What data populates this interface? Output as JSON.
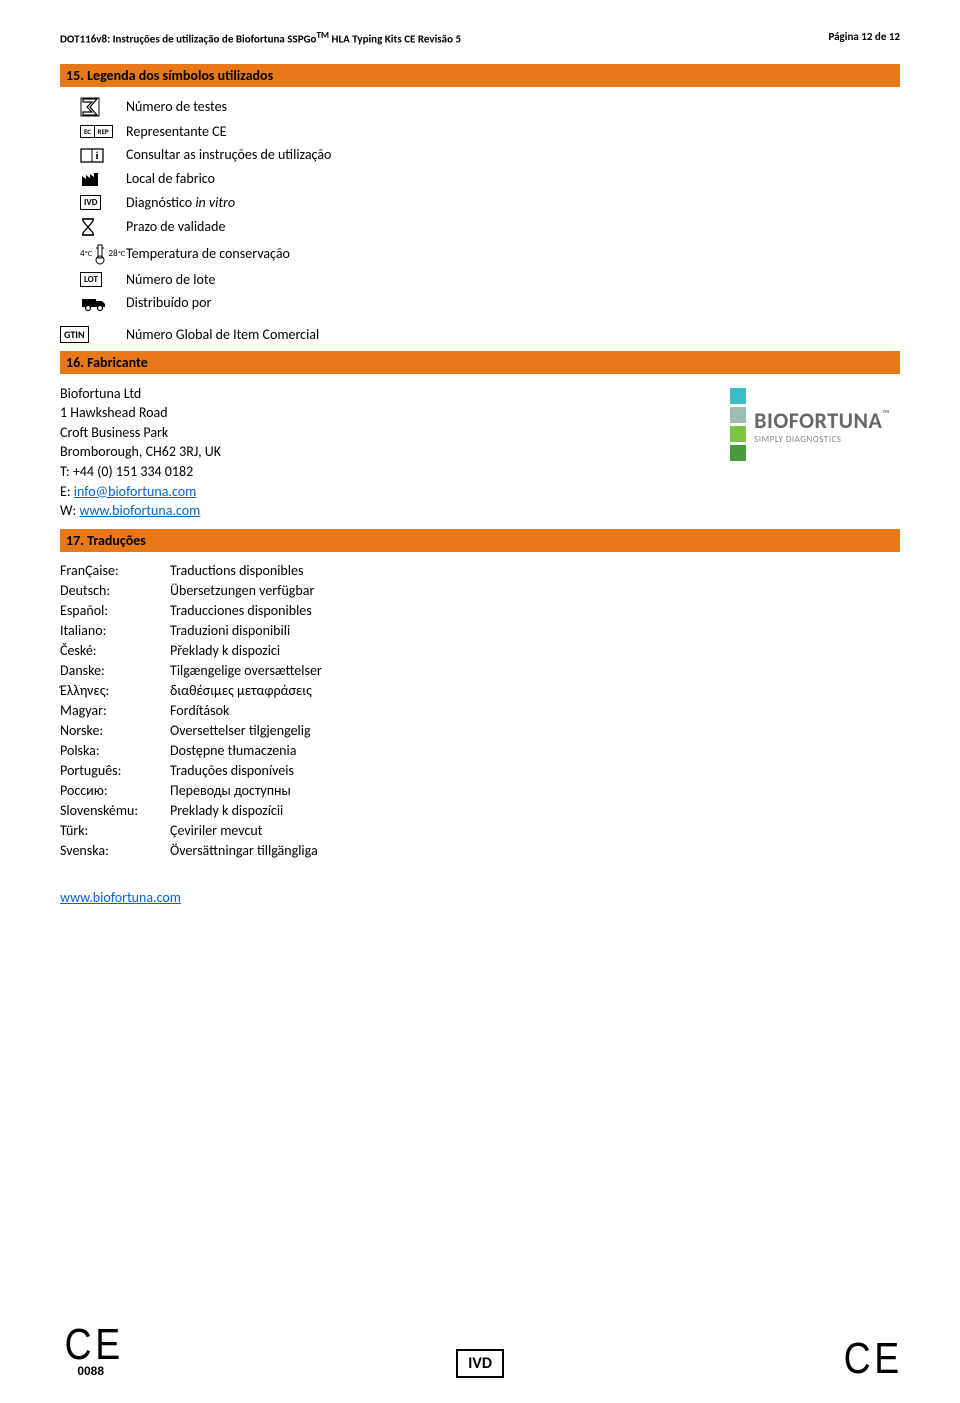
{
  "header": {
    "left_pre": "DOT116v8: Instruções de utilização de Biofortuna SSPGo",
    "left_sup": "TM",
    "left_post": " HLA Typing Kits CE Revisão 5",
    "right": "Página 12 de 12"
  },
  "section15": {
    "title": "15. Legenda dos símbolos utilizados",
    "rows": [
      {
        "icon": "sigma",
        "label": "Número de testes"
      },
      {
        "icon": "ecrep",
        "label": "Representante CE"
      },
      {
        "icon": "ifu",
        "label": "Consultar as instruções de utilização"
      },
      {
        "icon": "factory",
        "label": "Local de fabrico"
      },
      {
        "icon": "ivd",
        "label_pre": "Diagnóstico ",
        "label_italic": "in vitro"
      },
      {
        "icon": "hourglass",
        "label": "Prazo de validade"
      },
      {
        "icon": "temp",
        "label": "Temperatura de conservação",
        "t_low": "4",
        "t_high": "28",
        "unit": "℃"
      },
      {
        "icon": "lot",
        "label": "Número de lote"
      },
      {
        "icon": "truck",
        "label": "Distribuído por"
      },
      {
        "icon": "gtin",
        "label": "Número Global de Item Comercial"
      }
    ]
  },
  "section16": {
    "title": "16. Fabricante",
    "company": "Biofortuna Ltd",
    "addr1": "1 Hawkshead Road",
    "addr2": "Croft Business Park",
    "addr3": "Bromborough, CH62 3RJ, UK",
    "tel": "T: +44 (0) 151 334 0182",
    "email_label": "E: ",
    "email": "info@biofortuna.com",
    "web_label": "W: ",
    "web": "www.biofortuna.com",
    "logo_colors": [
      "#3bbcc3",
      "#9bbfb1",
      "#7dc243",
      "#4a9a3f"
    ],
    "logo_name": "BIOFORTUNA",
    "logo_tm": "™",
    "logo_sub": "SIMPLY DIAGNOSTICS"
  },
  "section17": {
    "title": "17. Traduções",
    "rows": [
      [
        "FranÇaise:",
        "Traductions disponibles"
      ],
      [
        "Deutsch:",
        "Übersetzungen verfügbar"
      ],
      [
        "Español:",
        "Traducciones disponibles"
      ],
      [
        "Italiano:",
        "Traduzioni disponibili"
      ],
      [
        "České:",
        "Překlady k dispozici"
      ],
      [
        "Danske:",
        "Tilgængelige oversættelser"
      ],
      [
        "Έλληνες:",
        "διαθέσιμες μεταφράσεις"
      ],
      [
        "Magyar:",
        "Fordítások"
      ],
      [
        "Norske:",
        "Oversettelser tilgjengelig"
      ],
      [
        "Polska:",
        "Dostępne tłumaczenia"
      ],
      [
        "Português:",
        "Traduções disponíveis"
      ],
      [
        "Россию:",
        "Переводы доступны"
      ],
      [
        "Slovenskému:",
        "Preklady k dispozícii"
      ],
      [
        "Türk:",
        "Çeviriler mevcut"
      ],
      [
        "Svenska:",
        "Översättningar tillgängliga"
      ]
    ],
    "bottom_link": "www.biofortuna.com"
  },
  "footer": {
    "ce_text": "C E",
    "ce_num": "0088",
    "ivd": "IVD"
  }
}
